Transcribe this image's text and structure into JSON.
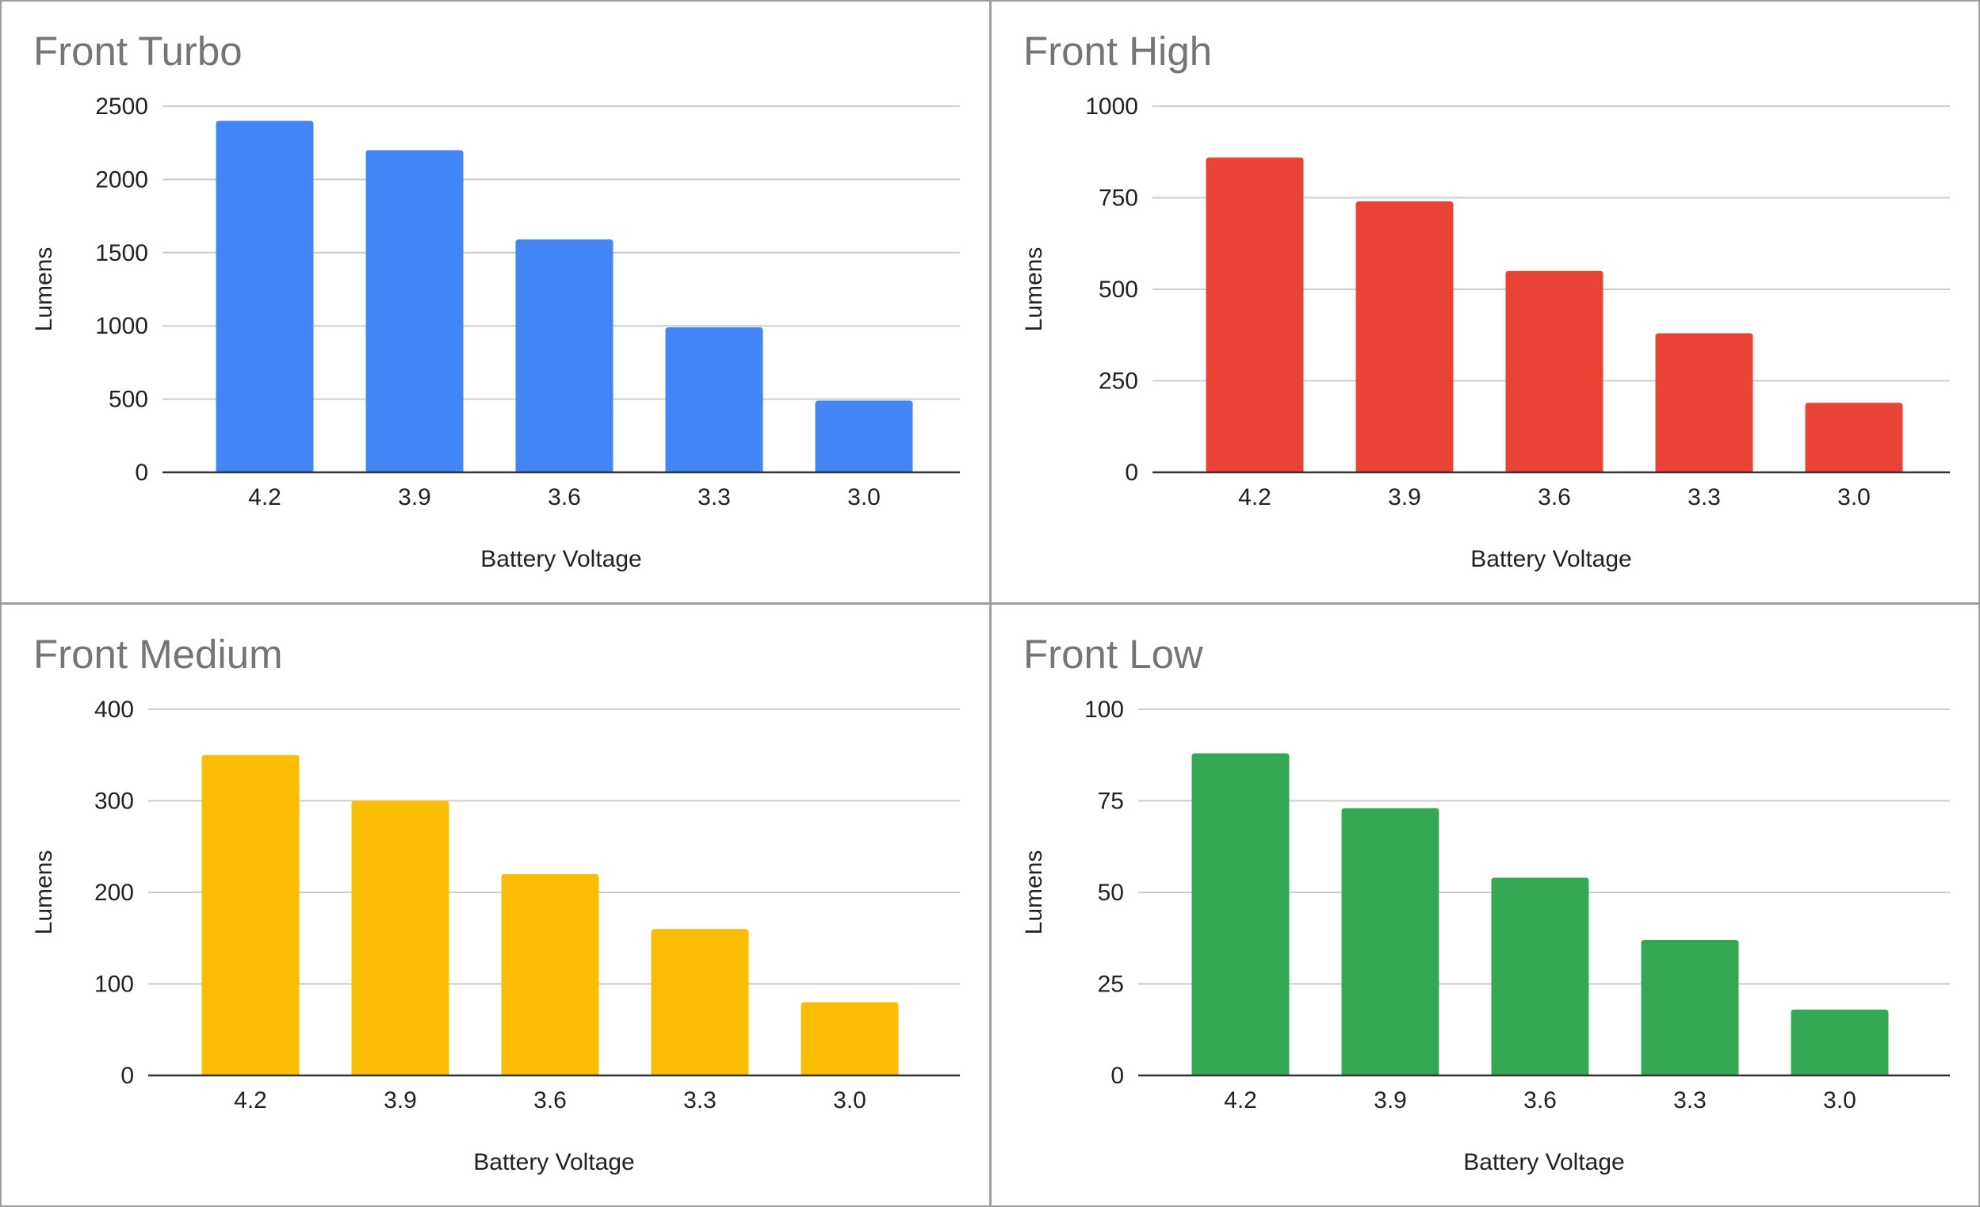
{
  "chart_data": [
    {
      "type": "bar",
      "title": "Front Turbo",
      "xlabel": "Battery Voltage",
      "ylabel": "Lumens",
      "categories": [
        "4.2",
        "3.9",
        "3.6",
        "3.3",
        "3.0"
      ],
      "values": [
        2400,
        2200,
        1590,
        990,
        490
      ],
      "ylim": [
        0,
        2500
      ],
      "yticks": [
        "0",
        "500",
        "1000",
        "1500",
        "2000",
        "2500"
      ],
      "ytick_values": [
        0,
        500,
        1000,
        1500,
        2000,
        2500
      ],
      "color": "#4285F4",
      "grid": true,
      "legend": "none"
    },
    {
      "type": "bar",
      "title": "Front High",
      "xlabel": "Battery Voltage",
      "ylabel": "Lumens",
      "categories": [
        "4.2",
        "3.9",
        "3.6",
        "3.3",
        "3.0"
      ],
      "values": [
        860,
        740,
        550,
        380,
        190
      ],
      "ylim": [
        0,
        1000
      ],
      "yticks": [
        "0",
        "250",
        "500",
        "750",
        "1000"
      ],
      "ytick_values": [
        0,
        250,
        500,
        750,
        1000
      ],
      "color": "#EA4335",
      "grid": true,
      "legend": "none"
    },
    {
      "type": "bar",
      "title": "Front Medium",
      "xlabel": "Battery Voltage",
      "ylabel": "Lumens",
      "categories": [
        "4.2",
        "3.9",
        "3.6",
        "3.3",
        "3.0"
      ],
      "values": [
        350,
        300,
        220,
        160,
        80
      ],
      "ylim": [
        0,
        400
      ],
      "yticks": [
        "0",
        "100",
        "200",
        "300",
        "400"
      ],
      "ytick_values": [
        0,
        100,
        200,
        300,
        400
      ],
      "color": "#FBBC04",
      "grid": true,
      "legend": "none"
    },
    {
      "type": "bar",
      "title": "Front Low",
      "xlabel": "Battery Voltage",
      "ylabel": "Lumens",
      "categories": [
        "4.2",
        "3.9",
        "3.6",
        "3.3",
        "3.0"
      ],
      "values": [
        88,
        73,
        54,
        37,
        18
      ],
      "ylim": [
        0,
        100
      ],
      "yticks": [
        "0",
        "25",
        "50",
        "75",
        "100"
      ],
      "ytick_values": [
        0,
        25,
        50,
        75,
        100
      ],
      "color": "#34A853",
      "grid": true,
      "legend": "none"
    }
  ]
}
